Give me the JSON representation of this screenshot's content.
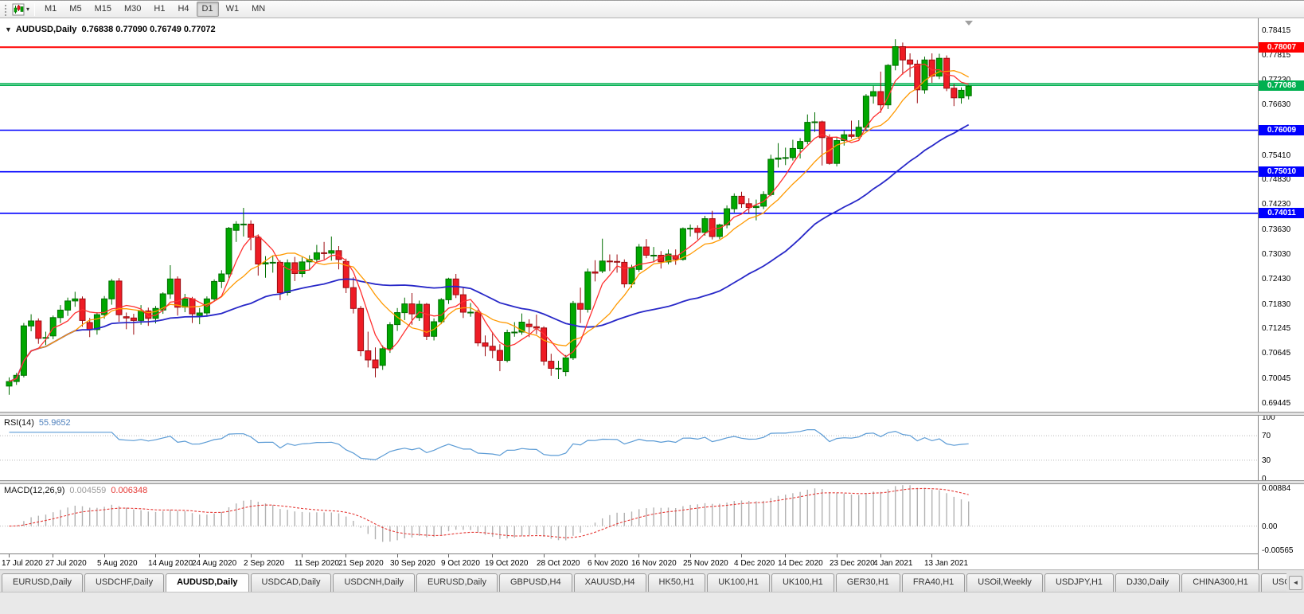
{
  "toolbar": {
    "timeframes": [
      "M1",
      "M5",
      "M15",
      "M30",
      "H1",
      "H4",
      "D1",
      "W1",
      "MN"
    ],
    "active_timeframe": "D1"
  },
  "chart": {
    "symbol_label": "AUDUSD,Daily",
    "ohlc_label": "0.76838 0.77090 0.76749 0.77072",
    "collapse_arrow": "▼",
    "price_scale_labels": [
      "0.78415",
      "0.77815",
      "0.77230",
      "0.76630",
      "0.75410",
      "0.74830",
      "0.74230",
      "0.73630",
      "0.73030",
      "0.72430",
      "0.71830",
      "0.71245",
      "0.70645",
      "0.70045",
      "0.69445"
    ],
    "hlines": [
      {
        "price": 0.78007,
        "color": "#ff0000",
        "width": 2,
        "badge": "0.78007"
      },
      {
        "price": 0.7713,
        "color": "#00b050",
        "width": 1.6,
        "badge": null
      },
      {
        "price": 0.77088,
        "color": "#00b050",
        "width": 1.6,
        "badge": "0.77088"
      },
      {
        "price": 0.76009,
        "color": "#0000ff",
        "width": 1.6,
        "badge": "0.76009"
      },
      {
        "price": 0.7501,
        "color": "#0000ff",
        "width": 1.6,
        "badge": "0.75010"
      },
      {
        "price": 0.74011,
        "color": "#0000ff",
        "width": 1.6,
        "badge": "0.74011"
      }
    ]
  },
  "rsi": {
    "label": "RSI(14)",
    "value": "55.9652",
    "scale": [
      {
        "label": "100",
        "v": 100
      },
      {
        "label": "70",
        "v": 70
      },
      {
        "label": "30",
        "v": 30
      },
      {
        "label": "0",
        "v": 0
      }
    ],
    "levels": [
      70,
      30
    ]
  },
  "macd": {
    "label": "MACD(12,26,9)",
    "value_main": "0.004559",
    "value_signal": "0.006348",
    "scale": [
      {
        "label": "0.00884",
        "v": 0.00884
      },
      {
        "label": "0.00",
        "v": 0
      },
      {
        "label": "-0.00565",
        "v": -0.00565
      }
    ]
  },
  "tabs": {
    "items": [
      "EURUSD,Daily",
      "USDCHF,Daily",
      "AUDUSD,Daily",
      "USDCAD,Daily",
      "USDCNH,Daily",
      "EURUSD,Daily",
      "GBPUSD,H4",
      "XAUUSD,H4",
      "HK50,H1",
      "UK100,H1",
      "UK100,H1",
      "GER30,H1",
      "FRA40,H1",
      "USOil,Weekly",
      "USDJPY,H1",
      "DJ30,Daily",
      "CHINA300,H1",
      "USOil,"
    ],
    "active_index": 2,
    "scroll_left_glyph": "◄"
  },
  "colors": {
    "candle_up": "#00a800",
    "candle_up_border": "#006e00",
    "candle_down": "#ee1c25",
    "candle_down_border": "#9c0b10",
    "rsi_line": "#5b9bd5",
    "rsi_value_text": "#4f81bd",
    "macd_hist": "#b2b2b2",
    "macd_signal": "#e53935",
    "level_line": "#b8b8b8"
  },
  "chart_data": {
    "type": "candlestick",
    "symbol": "AUDUSD",
    "timeframe": "Daily",
    "y_axis": {
      "visible_min": 0.69445,
      "visible_max": 0.78415,
      "grid": "off"
    },
    "legend_note": "candles_ohlc entries are [open,high,low,close]",
    "candles": [
      [
        0.6985,
        0.7006,
        0.6964,
        0.6996
      ],
      [
        0.6996,
        0.7017,
        0.6988,
        0.7011
      ],
      [
        0.7011,
        0.7137,
        0.7006,
        0.713
      ],
      [
        0.713,
        0.7158,
        0.7117,
        0.7142
      ],
      [
        0.7142,
        0.7148,
        0.7087,
        0.71
      ],
      [
        0.71,
        0.7116,
        0.7084,
        0.7102
      ],
      [
        0.7106,
        0.7155,
        0.7098,
        0.715
      ],
      [
        0.715,
        0.718,
        0.7137,
        0.7168
      ],
      [
        0.7168,
        0.7198,
        0.7154,
        0.719
      ],
      [
        0.719,
        0.7212,
        0.7176,
        0.7195
      ],
      [
        0.7195,
        0.7201,
        0.7128,
        0.7143
      ],
      [
        0.7138,
        0.7149,
        0.7103,
        0.7121
      ],
      [
        0.7121,
        0.7163,
        0.7109,
        0.7157
      ],
      [
        0.7157,
        0.7202,
        0.7147,
        0.7195
      ],
      [
        0.7195,
        0.7243,
        0.7181,
        0.7238
      ],
      [
        0.7238,
        0.7245,
        0.714,
        0.7157
      ],
      [
        0.7152,
        0.7162,
        0.7122,
        0.7149
      ],
      [
        0.7149,
        0.7159,
        0.7109,
        0.7143
      ],
      [
        0.7143,
        0.718,
        0.7133,
        0.7166
      ],
      [
        0.7166,
        0.7174,
        0.713,
        0.7148
      ],
      [
        0.7148,
        0.7178,
        0.7136,
        0.7172
      ],
      [
        0.7168,
        0.7211,
        0.7159,
        0.7207
      ],
      [
        0.7207,
        0.7276,
        0.7195,
        0.7243
      ],
      [
        0.7243,
        0.7249,
        0.7155,
        0.7175
      ],
      [
        0.7175,
        0.7207,
        0.7163,
        0.7195
      ],
      [
        0.7195,
        0.72,
        0.7137,
        0.7159
      ],
      [
        0.7155,
        0.7173,
        0.7134,
        0.7161
      ],
      [
        0.7161,
        0.7201,
        0.7152,
        0.7195
      ],
      [
        0.7195,
        0.7242,
        0.7189,
        0.7237
      ],
      [
        0.7237,
        0.7264,
        0.7221,
        0.7255
      ],
      [
        0.7255,
        0.7368,
        0.7245,
        0.7365
      ],
      [
        0.736,
        0.7382,
        0.7332,
        0.7375
      ],
      [
        0.7375,
        0.7414,
        0.7345,
        0.7375
      ],
      [
        0.7375,
        0.7384,
        0.7312,
        0.7343
      ],
      [
        0.7343,
        0.735,
        0.7251,
        0.7279
      ],
      [
        0.7279,
        0.7298,
        0.7246,
        0.7282
      ],
      [
        0.7282,
        0.73,
        0.7258,
        0.7283
      ],
      [
        0.7283,
        0.7288,
        0.7192,
        0.721
      ],
      [
        0.721,
        0.729,
        0.7203,
        0.7282
      ],
      [
        0.7282,
        0.7296,
        0.7238,
        0.7256
      ],
      [
        0.7256,
        0.7295,
        0.7247,
        0.7284
      ],
      [
        0.7284,
        0.73,
        0.7265,
        0.729
      ],
      [
        0.729,
        0.7325,
        0.7283,
        0.7306
      ],
      [
        0.7306,
        0.7332,
        0.729,
        0.7305
      ],
      [
        0.7305,
        0.7345,
        0.7287,
        0.7311
      ],
      [
        0.7311,
        0.7322,
        0.7266,
        0.729
      ],
      [
        0.7285,
        0.7292,
        0.7209,
        0.7222
      ],
      [
        0.7222,
        0.7247,
        0.716,
        0.7172
      ],
      [
        0.7172,
        0.7178,
        0.7057,
        0.707
      ],
      [
        0.707,
        0.7116,
        0.703,
        0.7048
      ],
      [
        0.7048,
        0.7078,
        0.7006,
        0.7029
      ],
      [
        0.7035,
        0.7083,
        0.7024,
        0.7075
      ],
      [
        0.7075,
        0.7139,
        0.7065,
        0.7133
      ],
      [
        0.7133,
        0.7173,
        0.7118,
        0.7162
      ],
      [
        0.7162,
        0.7198,
        0.7144,
        0.7183
      ],
      [
        0.7183,
        0.7209,
        0.7133,
        0.7159
      ],
      [
        0.715,
        0.7191,
        0.7142,
        0.7182
      ],
      [
        0.7182,
        0.7185,
        0.7096,
        0.7105
      ],
      [
        0.7105,
        0.7148,
        0.7095,
        0.714
      ],
      [
        0.714,
        0.7197,
        0.7134,
        0.7193
      ],
      [
        0.7193,
        0.7246,
        0.7183,
        0.7243
      ],
      [
        0.7243,
        0.7255,
        0.7197,
        0.7205
      ],
      [
        0.7205,
        0.7222,
        0.7149,
        0.7163
      ],
      [
        0.7163,
        0.7185,
        0.7152,
        0.7163
      ],
      [
        0.7163,
        0.7169,
        0.7081,
        0.7089
      ],
      [
        0.7089,
        0.7107,
        0.7057,
        0.7081
      ],
      [
        0.7081,
        0.7115,
        0.7052,
        0.7071
      ],
      [
        0.7071,
        0.7086,
        0.7021,
        0.7047
      ],
      [
        0.7047,
        0.7121,
        0.7042,
        0.7114
      ],
      [
        0.7114,
        0.7139,
        0.7104,
        0.7115
      ],
      [
        0.7115,
        0.716,
        0.7109,
        0.7139
      ],
      [
        0.7134,
        0.7146,
        0.7103,
        0.7128
      ],
      [
        0.7128,
        0.7157,
        0.711,
        0.7125
      ],
      [
        0.7125,
        0.7129,
        0.7035,
        0.7045
      ],
      [
        0.7045,
        0.7063,
        0.701,
        0.7028
      ],
      [
        0.7028,
        0.7046,
        0.7002,
        0.7028
      ],
      [
        0.702,
        0.706,
        0.7009,
        0.7053
      ],
      [
        0.7053,
        0.719,
        0.7048,
        0.7184
      ],
      [
        0.7184,
        0.7222,
        0.7137,
        0.717
      ],
      [
        0.717,
        0.7268,
        0.7162,
        0.726
      ],
      [
        0.726,
        0.7288,
        0.7237,
        0.7257
      ],
      [
        0.7262,
        0.734,
        0.7257,
        0.7286
      ],
      [
        0.7286,
        0.7302,
        0.7262,
        0.7285
      ],
      [
        0.7285,
        0.7302,
        0.7258,
        0.7283
      ],
      [
        0.7283,
        0.729,
        0.7222,
        0.7231
      ],
      [
        0.7231,
        0.7277,
        0.7222,
        0.727
      ],
      [
        0.7266,
        0.7327,
        0.726,
        0.732
      ],
      [
        0.732,
        0.7339,
        0.7293,
        0.73
      ],
      [
        0.73,
        0.732,
        0.7283,
        0.73
      ],
      [
        0.73,
        0.731,
        0.7268,
        0.7284
      ],
      [
        0.7284,
        0.7314,
        0.7278,
        0.7303
      ],
      [
        0.7299,
        0.7314,
        0.7277,
        0.729
      ],
      [
        0.729,
        0.7367,
        0.7287,
        0.7364
      ],
      [
        0.7364,
        0.7374,
        0.7345,
        0.7365
      ],
      [
        0.7365,
        0.7372,
        0.7338,
        0.7355
      ],
      [
        0.7355,
        0.7395,
        0.7347,
        0.7388
      ],
      [
        0.7388,
        0.7407,
        0.7338,
        0.7345
      ],
      [
        0.7345,
        0.7376,
        0.7339,
        0.7373
      ],
      [
        0.7373,
        0.742,
        0.7365,
        0.7412
      ],
      [
        0.7412,
        0.7449,
        0.7403,
        0.7442
      ],
      [
        0.7442,
        0.7453,
        0.7414,
        0.7424
      ],
      [
        0.7424,
        0.7437,
        0.74,
        0.7415
      ],
      [
        0.7415,
        0.7434,
        0.7384,
        0.7418
      ],
      [
        0.7418,
        0.7454,
        0.7411,
        0.7446
      ],
      [
        0.7446,
        0.7542,
        0.7442,
        0.7531
      ],
      [
        0.7531,
        0.757,
        0.7511,
        0.7534
      ],
      [
        0.7534,
        0.7559,
        0.7517,
        0.7535
      ],
      [
        0.7535,
        0.7578,
        0.7528,
        0.7557
      ],
      [
        0.7557,
        0.7582,
        0.7533,
        0.7574
      ],
      [
        0.7574,
        0.7639,
        0.7567,
        0.762
      ],
      [
        0.762,
        0.7644,
        0.7597,
        0.7621
      ],
      [
        0.7621,
        0.7624,
        0.7516,
        0.7583
      ],
      [
        0.7583,
        0.7591,
        0.7518,
        0.7521
      ],
      [
        0.7521,
        0.7583,
        0.7514,
        0.7576
      ],
      [
        0.7576,
        0.76,
        0.7564,
        0.759
      ],
      [
        0.759,
        0.7624,
        0.7581,
        0.7586
      ],
      [
        0.7586,
        0.7625,
        0.758,
        0.7608
      ],
      [
        0.7608,
        0.7688,
        0.7599,
        0.7683
      ],
      [
        0.7683,
        0.7708,
        0.7665,
        0.7694
      ],
      [
        0.7694,
        0.7742,
        0.7643,
        0.7662
      ],
      [
        0.7662,
        0.776,
        0.7652,
        0.7757
      ],
      [
        0.7757,
        0.782,
        0.7745,
        0.7802
      ],
      [
        0.7802,
        0.7812,
        0.7735,
        0.777
      ],
      [
        0.777,
        0.7786,
        0.7729,
        0.776
      ],
      [
        0.776,
        0.777,
        0.7666,
        0.7698
      ],
      [
        0.7698,
        0.7778,
        0.7689,
        0.777
      ],
      [
        0.777,
        0.7786,
        0.7715,
        0.7731
      ],
      [
        0.7731,
        0.7785,
        0.7724,
        0.7774
      ],
      [
        0.7774,
        0.7781,
        0.7695,
        0.7702
      ],
      [
        0.7702,
        0.7712,
        0.7659,
        0.7679
      ],
      [
        0.7679,
        0.7704,
        0.7665,
        0.7697
      ],
      [
        0.76838,
        0.7709,
        0.76749,
        0.77072
      ]
    ],
    "date_ticks": [
      {
        "i": 0,
        "label": "17 Jul 2020"
      },
      {
        "i": 6,
        "label": "27 Jul 2020"
      },
      {
        "i": 13,
        "label": "5 Aug 2020"
      },
      {
        "i": 20,
        "label": "14 Aug 2020"
      },
      {
        "i": 26,
        "label": "24 Aug 2020"
      },
      {
        "i": 33,
        "label": "2 Sep 2020"
      },
      {
        "i": 40,
        "label": "11 Sep 2020"
      },
      {
        "i": 46,
        "label": "21 Sep 2020"
      },
      {
        "i": 53,
        "label": "30 Sep 2020"
      },
      {
        "i": 60,
        "label": "9 Oct 2020"
      },
      {
        "i": 66,
        "label": "19 Oct 2020"
      },
      {
        "i": 73,
        "label": "28 Oct 2020"
      },
      {
        "i": 80,
        "label": "6 Nov 2020"
      },
      {
        "i": 86,
        "label": "16 Nov 2020"
      },
      {
        "i": 93,
        "label": "25 Nov 2020"
      },
      {
        "i": 100,
        "label": "4 Dec 2020"
      },
      {
        "i": 106,
        "label": "14 Dec 2020"
      },
      {
        "i": 113,
        "label": "23 Dec 2020"
      },
      {
        "i": 119,
        "label": "4 Jan 2021"
      },
      {
        "i": 126,
        "label": "13 Jan 2021"
      }
    ],
    "moving_averages": [
      {
        "name": "slow",
        "period": 34,
        "color": "#2828c8",
        "width": 1.8
      },
      {
        "name": "medium",
        "period": 10,
        "color": "#ff9900",
        "width": 1.3
      },
      {
        "name": "fast",
        "period": 5,
        "color": "#ff3030",
        "width": 1.3
      }
    ]
  }
}
